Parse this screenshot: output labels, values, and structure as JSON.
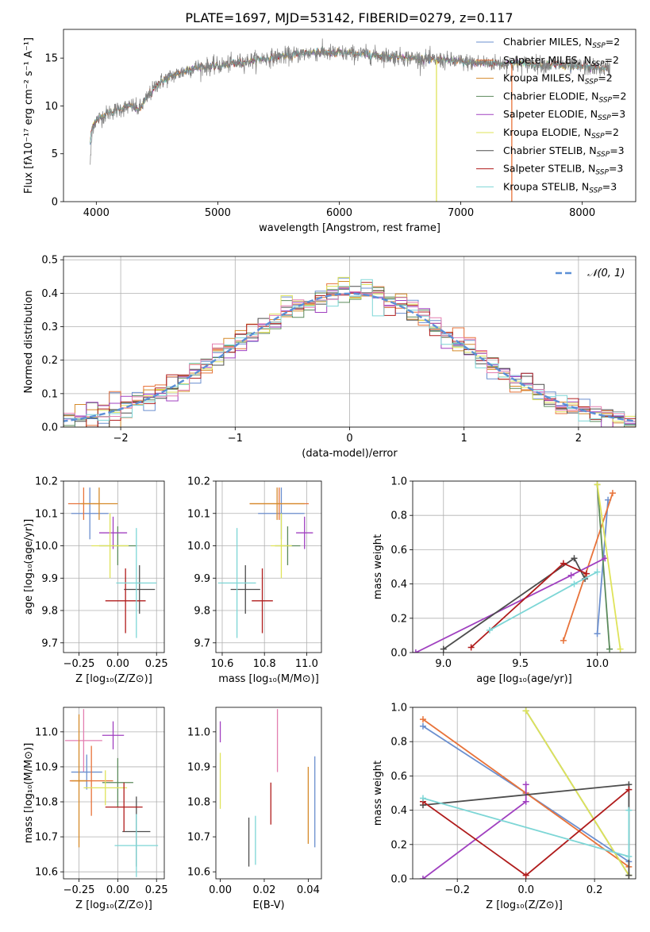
{
  "colors": {
    "Chabrier MILES": "#6b8fcf",
    "Salpeter MILES": "#e8733a",
    "Kroupa MILES": "#d58a2a",
    "Chabrier ELODIE": "#5b8a5b",
    "Salpeter ELODIE": "#a040c0",
    "Kroupa ELODIE": "#dfe35a",
    "Chabrier STELIB": "#4d4d4d",
    "Salpeter STELIB": "#b01c1c",
    "Kroupa STELIB": "#7dd6d6",
    "pink": "#e37fb0",
    "normal": "#5b8fd6"
  },
  "figure": {
    "title": "PLATE=1697, MJD=53142, FIBERID=0279, z=0.117"
  },
  "chart_data": [
    {
      "id": "spectrum",
      "type": "line",
      "xlabel": "wavelength [Angstrom, rest frame]",
      "ylabel": "Flux [fλ10⁻¹⁷ erg cm⁻² s⁻¹ A⁻¹]",
      "xlim": [
        3730,
        8440
      ],
      "ylim": [
        0,
        18
      ],
      "xticks": [
        4000,
        5000,
        6000,
        7000,
        8000
      ],
      "yticks": [
        0,
        5,
        10,
        15
      ],
      "grid": false,
      "legend": [
        {
          "name": "Chabrier MILES",
          "sub": "SSP",
          "value": "2"
        },
        {
          "name": "Salpeter MILES",
          "sub": "SSP",
          "value": "2"
        },
        {
          "name": "Kroupa MILES",
          "sub": "SSP",
          "value": "2"
        },
        {
          "name": "Chabrier ELODIE",
          "sub": "SSP",
          "value": "2"
        },
        {
          "name": "Salpeter ELODIE",
          "sub": "SSP",
          "value": "3"
        },
        {
          "name": "Kroupa ELODIE",
          "sub": "SSP",
          "value": "2"
        },
        {
          "name": "Chabrier STELIB",
          "sub": "SSP",
          "value": "3"
        },
        {
          "name": "Salpeter STELIB",
          "sub": "SSP",
          "value": "3"
        },
        {
          "name": "Kroupa STELIB",
          "sub": "SSP",
          "value": "3"
        }
      ],
      "legend_position": "upper-right",
      "continuum": [
        [
          3950,
          7.5
        ],
        [
          4000,
          8.5
        ],
        [
          4100,
          9.3
        ],
        [
          4200,
          9.7
        ],
        [
          4300,
          10.0
        ],
        [
          4350,
          9.6
        ],
        [
          4500,
          12.3
        ],
        [
          4600,
          13.0
        ],
        [
          4800,
          14.0
        ],
        [
          5000,
          14.2
        ],
        [
          5200,
          14.6
        ],
        [
          5400,
          15.0
        ],
        [
          5600,
          15.3
        ],
        [
          5800,
          15.6
        ],
        [
          6000,
          15.5
        ],
        [
          6200,
          15.4
        ],
        [
          6400,
          15.2
        ],
        [
          6600,
          15.0
        ],
        [
          6800,
          14.8
        ],
        [
          7000,
          14.6
        ],
        [
          7200,
          14.5
        ],
        [
          7500,
          14.4
        ],
        [
          7800,
          14.3
        ],
        [
          8000,
          14.1
        ],
        [
          8200,
          13.9
        ]
      ],
      "glitches": [
        {
          "x": 6800,
          "series": "Kroupa ELODIE",
          "to": 0
        },
        {
          "x": 7420,
          "series": "Salpeter MILES",
          "to": 0
        }
      ]
    },
    {
      "id": "residuals",
      "type": "histogram",
      "xlabel": "(data-model)/error",
      "ylabel": "Normed distribution",
      "xlim": [
        -2.5,
        2.5
      ],
      "ylim": [
        0,
        0.51
      ],
      "xticks": [
        -2,
        -1,
        0,
        1,
        2
      ],
      "yticks": [
        0.0,
        0.1,
        0.2,
        0.3,
        0.4,
        0.5
      ],
      "grid": true,
      "bin_width": 0.1,
      "legend": [
        {
          "name": "𝒩(0, 1)",
          "style": "dashed"
        }
      ],
      "legend_position": "upper-right",
      "normal_curve": {
        "mean": 0,
        "sigma": 1
      }
    },
    {
      "id": "age-vs-Z",
      "type": "errorbar",
      "xlabel": "Z [log₁₀(Z/Z⊙)]",
      "ylabel": "age  [log₁₀(age/yr)]",
      "xlim": [
        -0.35,
        0.3
      ],
      "ylim": [
        9.67,
        10.2
      ],
      "xticks": [
        -0.25,
        0.0,
        0.25
      ],
      "yticks": [
        9.7,
        9.8,
        9.9,
        10.0,
        10.1,
        10.2
      ],
      "grid": true,
      "points": [
        {
          "series": "Chabrier MILES",
          "x": -0.18,
          "xerr": 0.12,
          "y": 10.1,
          "yerr": 0.08
        },
        {
          "series": "Salpeter MILES",
          "x": -0.22,
          "xerr": 0.1,
          "y": 10.13,
          "yerr": 0.05
        },
        {
          "series": "Kroupa MILES",
          "x": -0.12,
          "xerr": 0.12,
          "y": 10.13,
          "yerr": 0.05
        },
        {
          "series": "Chabrier ELODIE",
          "x": 0.0,
          "xerr": 0.12,
          "y": 10.0,
          "yerr": 0.06
        },
        {
          "series": "Salpeter ELODIE",
          "x": -0.03,
          "xerr": 0.09,
          "y": 10.04,
          "yerr": 0.05
        },
        {
          "series": "Kroupa ELODIE",
          "x": -0.05,
          "xerr": 0.12,
          "y": 10.0,
          "yerr": 0.1
        },
        {
          "series": "Chabrier STELIB",
          "x": 0.14,
          "xerr": 0.1,
          "y": 9.865,
          "yerr": 0.075
        },
        {
          "series": "Salpeter STELIB",
          "x": 0.05,
          "xerr": 0.13,
          "y": 9.83,
          "yerr": 0.1
        },
        {
          "series": "Kroupa STELIB",
          "x": 0.12,
          "xerr": 0.13,
          "y": 9.885,
          "yerr": 0.17
        }
      ]
    },
    {
      "id": "age-vs-mass",
      "type": "errorbar",
      "xlabel": "mass [log₁₀(M/M⊙)]",
      "ylabel": "",
      "xlim": [
        10.57,
        11.07
      ],
      "ylim": [
        9.67,
        10.2
      ],
      "xticks": [
        10.6,
        10.8,
        11.0
      ],
      "yticks": [
        9.7,
        9.8,
        9.9,
        10.0,
        10.1,
        10.2
      ],
      "grid": true,
      "points": [
        {
          "series": "Chabrier MILES",
          "x": 10.88,
          "xerr": 0.11,
          "y": 10.1,
          "yerr": 0.08
        },
        {
          "series": "Salpeter MILES",
          "x": 10.87,
          "xerr": 0.14,
          "y": 10.13,
          "yerr": 0.05
        },
        {
          "series": "Kroupa MILES",
          "x": 10.86,
          "xerr": 0.13,
          "y": 10.13,
          "yerr": 0.05
        },
        {
          "series": "Chabrier ELODIE",
          "x": 10.91,
          "xerr": 0.06,
          "y": 10.0,
          "yerr": 0.06
        },
        {
          "series": "Salpeter ELODIE",
          "x": 10.99,
          "xerr": 0.04,
          "y": 10.04,
          "yerr": 0.05
        },
        {
          "series": "Kroupa ELODIE",
          "x": 10.88,
          "xerr": 0.05,
          "y": 10.0,
          "yerr": 0.1
        },
        {
          "series": "Chabrier STELIB",
          "x": 10.71,
          "xerr": 0.07,
          "y": 9.865,
          "yerr": 0.075
        },
        {
          "series": "Salpeter STELIB",
          "x": 10.79,
          "xerr": 0.05,
          "y": 9.83,
          "yerr": 0.1
        },
        {
          "series": "Kroupa STELIB",
          "x": 10.67,
          "xerr": 0.09,
          "y": 9.885,
          "yerr": 0.17
        }
      ]
    },
    {
      "id": "weight-vs-age",
      "type": "line",
      "xlabel": "age  [log₁₀(age/yr)]",
      "ylabel": "mass weight",
      "xlim": [
        8.8,
        10.25
      ],
      "ylim": [
        0,
        1
      ],
      "xticks": [
        9.0,
        9.5,
        10.0
      ],
      "yticks": [
        0.0,
        0.2,
        0.4,
        0.6,
        0.8,
        1.0
      ],
      "grid": true,
      "series": [
        {
          "name": "Chabrier MILES",
          "points": [
            [
              10.0,
              0.11
            ],
            [
              10.07,
              0.89
            ]
          ]
        },
        {
          "name": "Salpeter MILES",
          "points": [
            [
              9.78,
              0.07
            ],
            [
              10.1,
              0.93
            ]
          ]
        },
        {
          "name": "Chabrier ELODIE",
          "points": [
            [
              10.0,
              0.98
            ],
            [
              10.08,
              0.02
            ]
          ]
        },
        {
          "name": "Salpeter ELODIE",
          "points": [
            [
              8.82,
              0.0
            ],
            [
              9.83,
              0.45
            ],
            [
              10.05,
              0.55
            ]
          ]
        },
        {
          "name": "Kroupa ELODIE",
          "points": [
            [
              10.0,
              0.98
            ],
            [
              10.15,
              0.02
            ]
          ]
        },
        {
          "name": "Chabrier STELIB",
          "points": [
            [
              9.0,
              0.02
            ],
            [
              9.85,
              0.55
            ],
            [
              9.92,
              0.43
            ]
          ]
        },
        {
          "name": "Salpeter STELIB",
          "points": [
            [
              9.18,
              0.03
            ],
            [
              9.78,
              0.52
            ],
            [
              9.93,
              0.46
            ]
          ]
        },
        {
          "name": "Kroupa STELIB",
          "points": [
            [
              9.3,
              0.13
            ],
            [
              9.85,
              0.4
            ],
            [
              10.0,
              0.47
            ]
          ]
        }
      ]
    },
    {
      "id": "mass-vs-Z",
      "type": "errorbar",
      "xlabel": "Z [log₁₀(Z/Z⊙)]",
      "ylabel": "mass [log₁₀(M/M⊙)]",
      "xlim": [
        -0.35,
        0.3
      ],
      "ylim": [
        10.58,
        11.07
      ],
      "xticks": [
        -0.25,
        0.0,
        0.25
      ],
      "yticks": [
        10.6,
        10.7,
        10.8,
        10.9,
        11.0
      ],
      "grid": true,
      "points": [
        {
          "series": "pink",
          "x": -0.22,
          "xerr": 0.12,
          "y": 10.975,
          "yerr": 0.09
        },
        {
          "series": "Salpeter ELODIE",
          "x": -0.03,
          "xerr": 0.07,
          "y": 10.99,
          "yerr": 0.04
        },
        {
          "series": "Chabrier MILES",
          "x": -0.2,
          "xerr": 0.1,
          "y": 10.885,
          "yerr": 0.05
        },
        {
          "series": "Salpeter MILES",
          "x": -0.17,
          "xerr": 0.14,
          "y": 10.86,
          "yerr": 0.1
        },
        {
          "series": "Kroupa MILES",
          "x": -0.25,
          "xerr": 0.05,
          "y": 10.86,
          "yerr": 0.19
        },
        {
          "series": "Chabrier ELODIE",
          "x": 0.0,
          "xerr": 0.1,
          "y": 10.855,
          "yerr": 0.07
        },
        {
          "series": "Kroupa ELODIE",
          "x": -0.08,
          "xerr": 0.14,
          "y": 10.84,
          "yerr": 0.05
        },
        {
          "series": "Chabrier STELIB",
          "x": 0.12,
          "xerr": 0.09,
          "y": 10.715,
          "yerr": 0.1
        },
        {
          "series": "Salpeter STELIB",
          "x": 0.04,
          "xerr": 0.12,
          "y": 10.785,
          "yerr": 0.07
        },
        {
          "series": "Kroupa STELIB",
          "x": 0.12,
          "xerr": 0.14,
          "y": 10.675,
          "yerr": 0.09
        }
      ]
    },
    {
      "id": "mass-vs-EBV",
      "type": "errorbar",
      "xlabel": "E(B-V)",
      "ylabel": "",
      "xlim": [
        -0.002,
        0.046
      ],
      "ylim": [
        10.58,
        11.07
      ],
      "xticks": [
        0.0,
        0.02,
        0.04
      ],
      "yticks": [
        10.6,
        10.7,
        10.8,
        10.9,
        11.0
      ],
      "grid": false,
      "points": [
        {
          "series": "Salpeter ELODIE",
          "x": 0.0,
          "y": 11.0,
          "yerr": 0.03
        },
        {
          "series": "Kroupa ELODIE",
          "x": 0.0,
          "y": 10.86,
          "yerr": 0.08
        },
        {
          "series": "Chabrier STELIB",
          "x": 0.013,
          "y": 10.685,
          "yerr": 0.07
        },
        {
          "series": "Kroupa STELIB",
          "x": 0.016,
          "y": 10.69,
          "yerr": 0.07
        },
        {
          "series": "Salpeter STELIB",
          "x": 0.023,
          "y": 10.795,
          "yerr": 0.06
        },
        {
          "series": "pink",
          "x": 0.026,
          "y": 10.975,
          "yerr": 0.09
        },
        {
          "series": "Kroupa MILES",
          "x": 0.04,
          "y": 10.79,
          "yerr": 0.11
        },
        {
          "series": "Chabrier MILES",
          "x": 0.043,
          "y": 10.8,
          "yerr": 0.13
        }
      ]
    },
    {
      "id": "weight-vs-Z",
      "type": "line",
      "xlabel": "Z [log₁₀(Z/Z⊙)]",
      "ylabel": "mass weight",
      "xlim": [
        -0.33,
        0.32
      ],
      "ylim": [
        0,
        1
      ],
      "xticks": [
        -0.2,
        0.0,
        0.2
      ],
      "yticks": [
        0.0,
        0.2,
        0.4,
        0.6,
        0.8,
        1.0
      ],
      "grid": true,
      "series": [
        {
          "name": "Chabrier MILES",
          "points": [
            [
              -0.3,
              0.89
            ],
            [
              0.0,
              0.5
            ],
            [
              0.3,
              0.1
            ]
          ]
        },
        {
          "name": "Salpeter MILES",
          "points": [
            [
              -0.3,
              0.93
            ],
            [
              0.0,
              0.5
            ],
            [
              0.3,
              0.07
            ]
          ]
        },
        {
          "name": "Chabrier ELODIE",
          "points": [
            [
              0.0,
              0.98
            ],
            [
              0.3,
              0.02
            ]
          ]
        },
        {
          "name": "Salpeter ELODIE",
          "points": [
            [
              -0.3,
              0.0
            ],
            [
              0.0,
              0.45
            ],
            [
              0.0,
              0.55
            ]
          ]
        },
        {
          "name": "Kroupa ELODIE",
          "points": [
            [
              0.0,
              0.98
            ],
            [
              0.3,
              0.02
            ]
          ]
        },
        {
          "name": "Chabrier STELIB",
          "points": [
            [
              -0.3,
              0.43
            ],
            [
              0.3,
              0.55
            ],
            [
              0.3,
              0.02
            ]
          ]
        },
        {
          "name": "Salpeter STELIB",
          "points": [
            [
              -0.3,
              0.45
            ],
            [
              0.0,
              0.02
            ],
            [
              0.3,
              0.52
            ]
          ]
        },
        {
          "name": "Kroupa STELIB",
          "points": [
            [
              -0.3,
              0.47
            ],
            [
              0.3,
              0.13
            ],
            [
              0.3,
              0.4
            ]
          ]
        }
      ]
    }
  ]
}
